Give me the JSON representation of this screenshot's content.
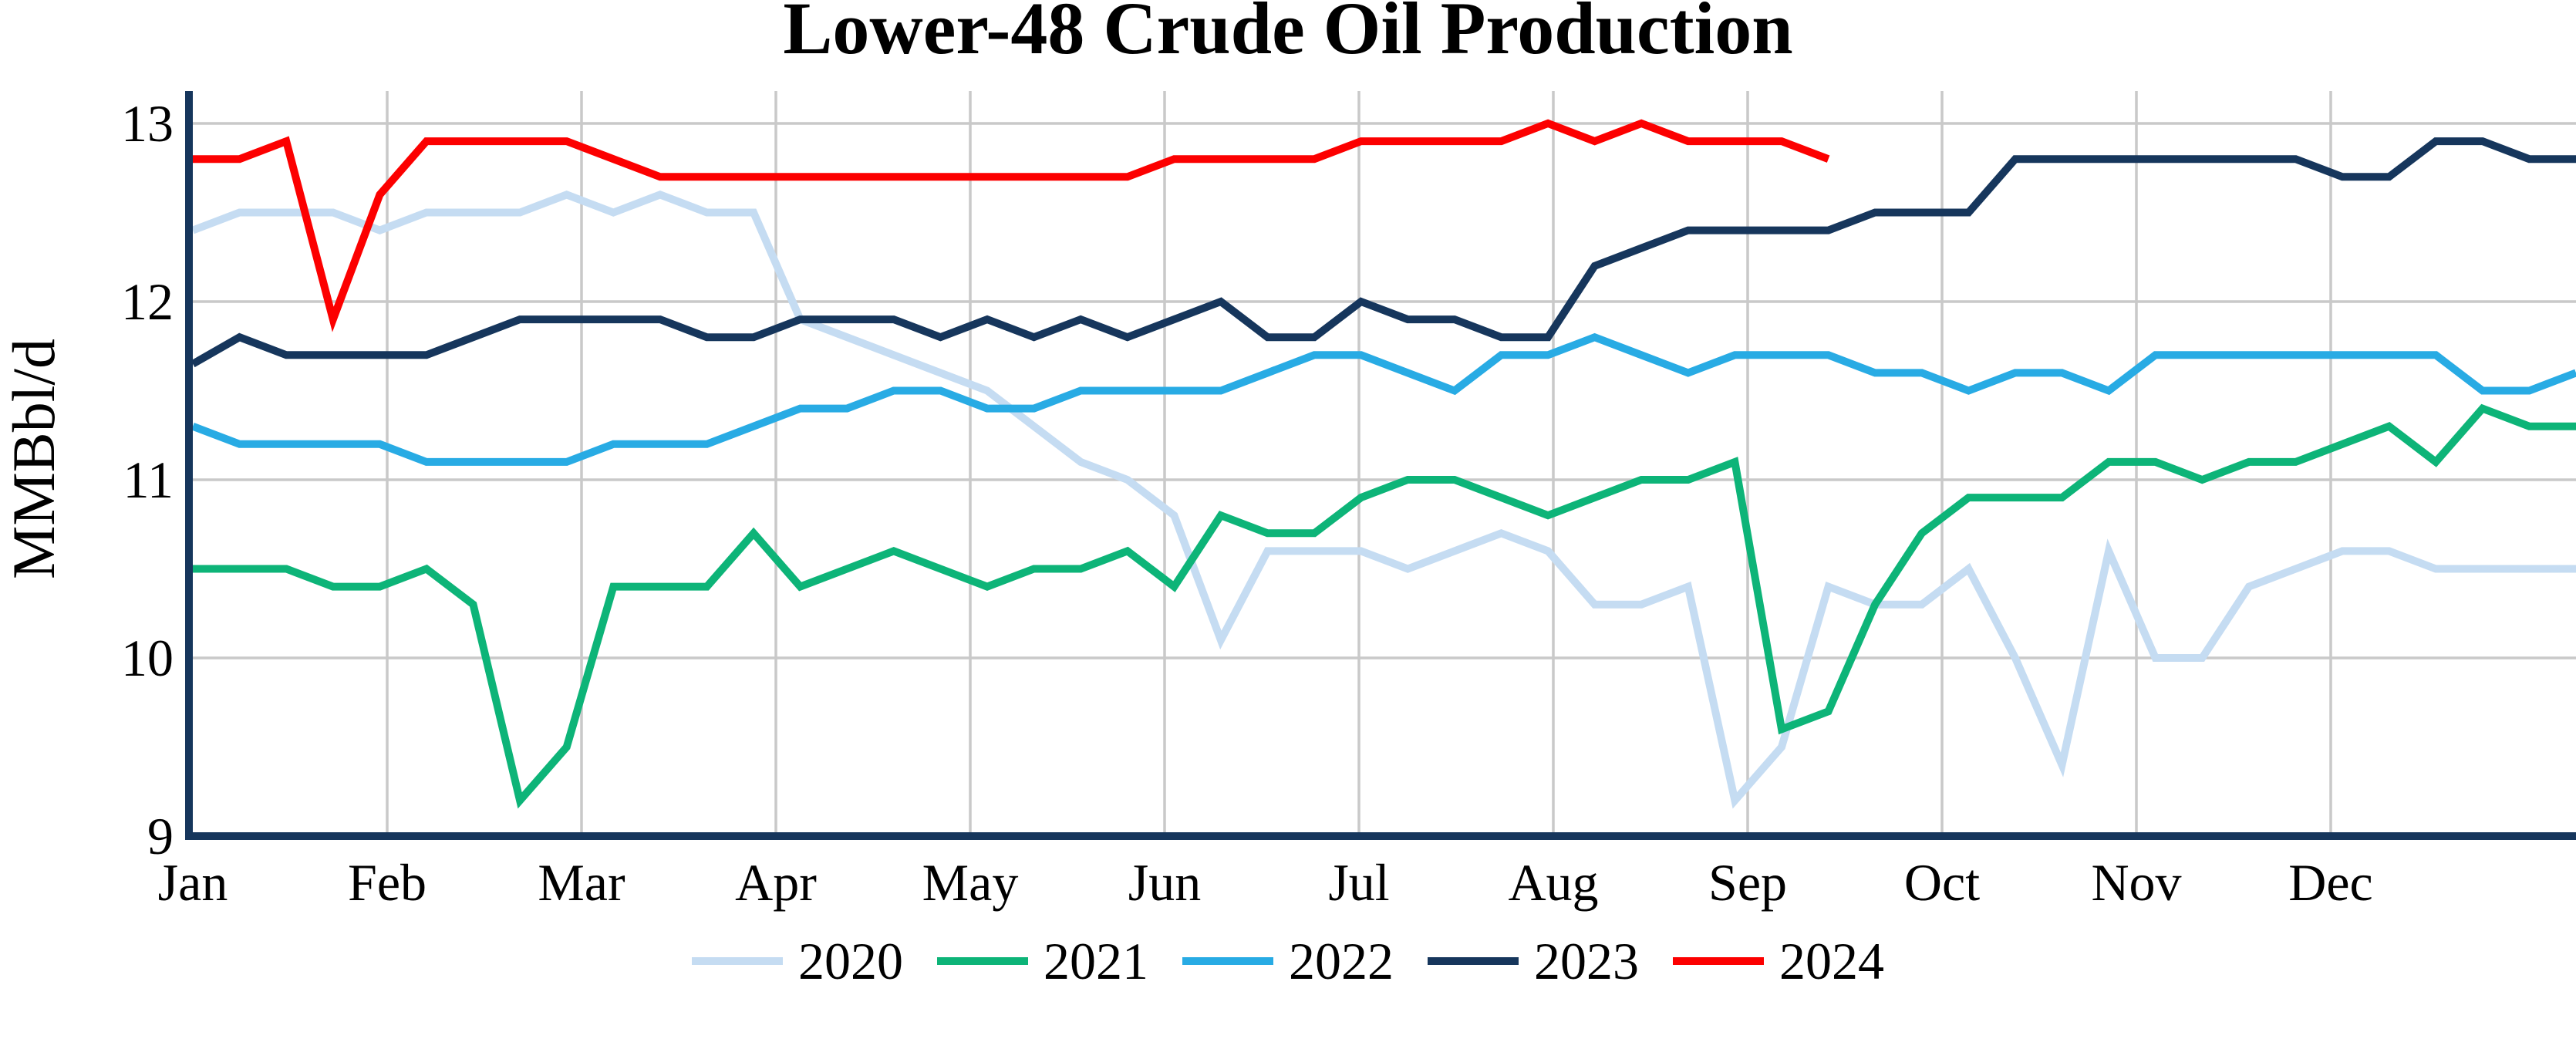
{
  "title": "Lower-48 Crude Oil Production",
  "y_axis": {
    "label": "MMBbl/d",
    "ticks": [
      "13",
      "12",
      "11",
      "10",
      "9"
    ]
  },
  "x_axis": {
    "months": [
      "Jan",
      "Feb",
      "Mar",
      "Apr",
      "May",
      "Jun",
      "Jul",
      "Aug",
      "Sep",
      "Oct",
      "Nov",
      "Dec"
    ]
  },
  "colors": {
    "background": "#FFFFFF",
    "text": "#000000",
    "grid": "#C9C9C9",
    "axis": "#16365C"
  },
  "chart_data": {
    "type": "line",
    "title": "Lower-48 Crude Oil Production",
    "xlabel": "",
    "ylabel": "MMBbl/d",
    "ylim": [
      9,
      13
    ],
    "yticks": [
      13,
      12,
      11,
      10,
      9
    ],
    "x_categories": [
      "Jan",
      "Feb",
      "Mar",
      "Apr",
      "May",
      "Jun",
      "Jul",
      "Aug",
      "Sep",
      "Oct",
      "Nov",
      "Dec"
    ],
    "x_resolution": "weekly (52 points per full year; 2024 partial, ends mid-September)",
    "grid": true,
    "legend_position": "bottom",
    "series": [
      {
        "name": "2020",
        "color": "#C5DCF2",
        "values": [
          12.4,
          12.5,
          12.5,
          12.5,
          12.4,
          12.5,
          12.5,
          12.5,
          12.6,
          12.5,
          12.6,
          12.5,
          12.5,
          11.9,
          11.8,
          11.7,
          11.6,
          11.5,
          11.3,
          11.1,
          11.0,
          10.8,
          10.1,
          10.6,
          10.6,
          10.6,
          10.5,
          10.6,
          10.7,
          10.6,
          10.3,
          10.3,
          10.4,
          9.2,
          9.5,
          10.4,
          10.3,
          10.3,
          10.5,
          10.0,
          9.4,
          10.6,
          10.0,
          10.0,
          10.4,
          10.5,
          10.6,
          10.6,
          10.5,
          10.5,
          10.5,
          10.5
        ]
      },
      {
        "name": "2021",
        "color": "#0DB478",
        "values": [
          10.5,
          10.5,
          10.5,
          10.4,
          10.4,
          10.5,
          10.3,
          9.2,
          9.5,
          10.4,
          10.4,
          10.4,
          10.7,
          10.4,
          10.5,
          10.6,
          10.5,
          10.4,
          10.5,
          10.5,
          10.6,
          10.4,
          10.8,
          10.7,
          10.7,
          10.9,
          11.0,
          11.0,
          10.9,
          10.8,
          10.9,
          11.0,
          11.0,
          11.1,
          9.6,
          9.7,
          10.3,
          10.7,
          10.9,
          10.9,
          10.9,
          11.1,
          11.1,
          11.0,
          11.1,
          11.1,
          11.2,
          11.3,
          11.1,
          11.4,
          11.3,
          11.3
        ]
      },
      {
        "name": "2022",
        "color": "#28ABE4",
        "values": [
          11.3,
          11.2,
          11.2,
          11.2,
          11.2,
          11.1,
          11.1,
          11.1,
          11.1,
          11.2,
          11.2,
          11.2,
          11.3,
          11.4,
          11.4,
          11.5,
          11.5,
          11.4,
          11.4,
          11.5,
          11.5,
          11.5,
          11.5,
          11.6,
          11.7,
          11.7,
          11.6,
          11.5,
          11.7,
          11.7,
          11.8,
          11.7,
          11.6,
          11.7,
          11.7,
          11.7,
          11.6,
          11.6,
          11.5,
          11.6,
          11.6,
          11.5,
          11.7,
          11.7,
          11.7,
          11.7,
          11.7,
          11.7,
          11.7,
          11.5,
          11.5,
          11.6
        ]
      },
      {
        "name": "2023",
        "color": "#16365C",
        "values": [
          11.65,
          11.8,
          11.7,
          11.7,
          11.7,
          11.7,
          11.8,
          11.9,
          11.9,
          11.9,
          11.9,
          11.8,
          11.8,
          11.9,
          11.9,
          11.9,
          11.8,
          11.9,
          11.8,
          11.9,
          11.8,
          11.9,
          12.0,
          11.8,
          11.8,
          12.0,
          11.9,
          11.9,
          11.8,
          11.8,
          12.2,
          12.3,
          12.4,
          12.4,
          12.4,
          12.4,
          12.5,
          12.5,
          12.5,
          12.8,
          12.8,
          12.8,
          12.8,
          12.8,
          12.8,
          12.8,
          12.7,
          12.7,
          12.9,
          12.9,
          12.8,
          12.8
        ]
      },
      {
        "name": "2024",
        "color": "#FC0000",
        "values": [
          12.8,
          12.8,
          12.9,
          11.9,
          12.6,
          12.9,
          12.9,
          12.9,
          12.9,
          12.8,
          12.7,
          12.7,
          12.7,
          12.7,
          12.7,
          12.7,
          12.7,
          12.7,
          12.7,
          12.7,
          12.7,
          12.8,
          12.8,
          12.8,
          12.8,
          12.9,
          12.9,
          12.9,
          12.9,
          13.0,
          12.9,
          13.0,
          12.9,
          12.9,
          12.9,
          12.8
        ]
      }
    ]
  }
}
